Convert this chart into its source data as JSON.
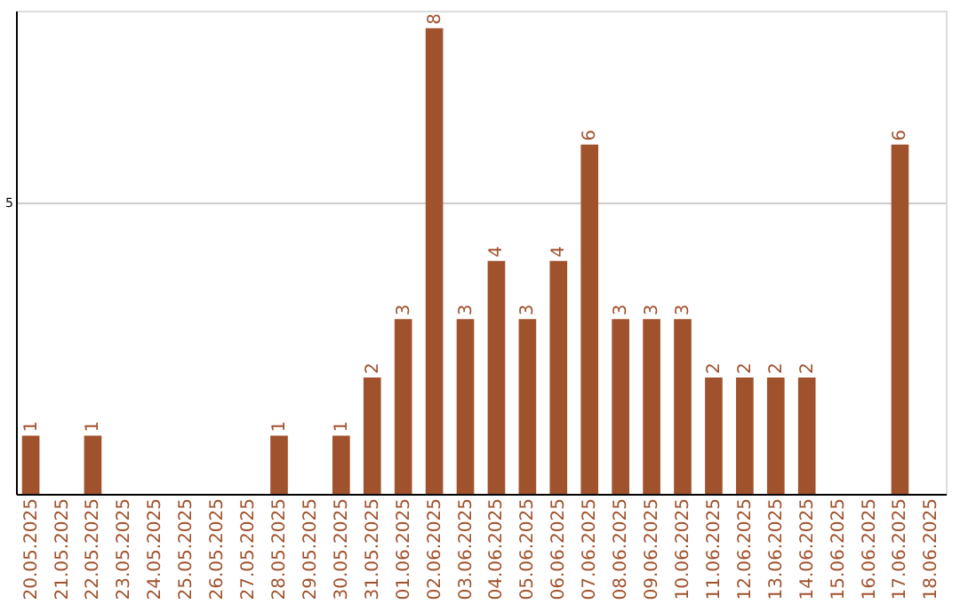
{
  "chart_data": {
    "type": "bar",
    "categories": [
      "20.05.2025",
      "21.05.2025",
      "22.05.2025",
      "23.05.2025",
      "24.05.2025",
      "25.05.2025",
      "26.05.2025",
      "27.05.2025",
      "28.05.2025",
      "29.05.2025",
      "30.05.2025",
      "31.05.2025",
      "01.06.2025",
      "02.06.2025",
      "03.06.2025",
      "04.06.2025",
      "05.06.2025",
      "06.06.2025",
      "07.06.2025",
      "08.06.2025",
      "09.06.2025",
      "10.06.2025",
      "11.06.2025",
      "12.06.2025",
      "13.06.2025",
      "14.06.2025",
      "15.06.2025",
      "16.06.2025",
      "17.06.2025",
      "18.06.2025"
    ],
    "values": [
      1,
      0,
      1,
      0,
      0,
      0,
      0,
      0,
      1,
      0,
      1,
      2,
      3,
      8,
      3,
      4,
      3,
      4,
      6,
      3,
      3,
      3,
      2,
      2,
      2,
      2,
      0,
      0,
      6,
      0
    ],
    "value_labels": [
      "1",
      null,
      "1",
      null,
      null,
      null,
      null,
      null,
      "1",
      null,
      "1",
      "2",
      "3",
      "8",
      "3",
      "4",
      "3",
      "4",
      "6",
      "3",
      "3",
      "3",
      "2",
      "2",
      "2",
      "2",
      null,
      null,
      "6",
      null
    ],
    "color": "#a0522d",
    "ylim": [
      0,
      8.3
    ],
    "yticks": [
      5
    ],
    "grid": "y"
  }
}
